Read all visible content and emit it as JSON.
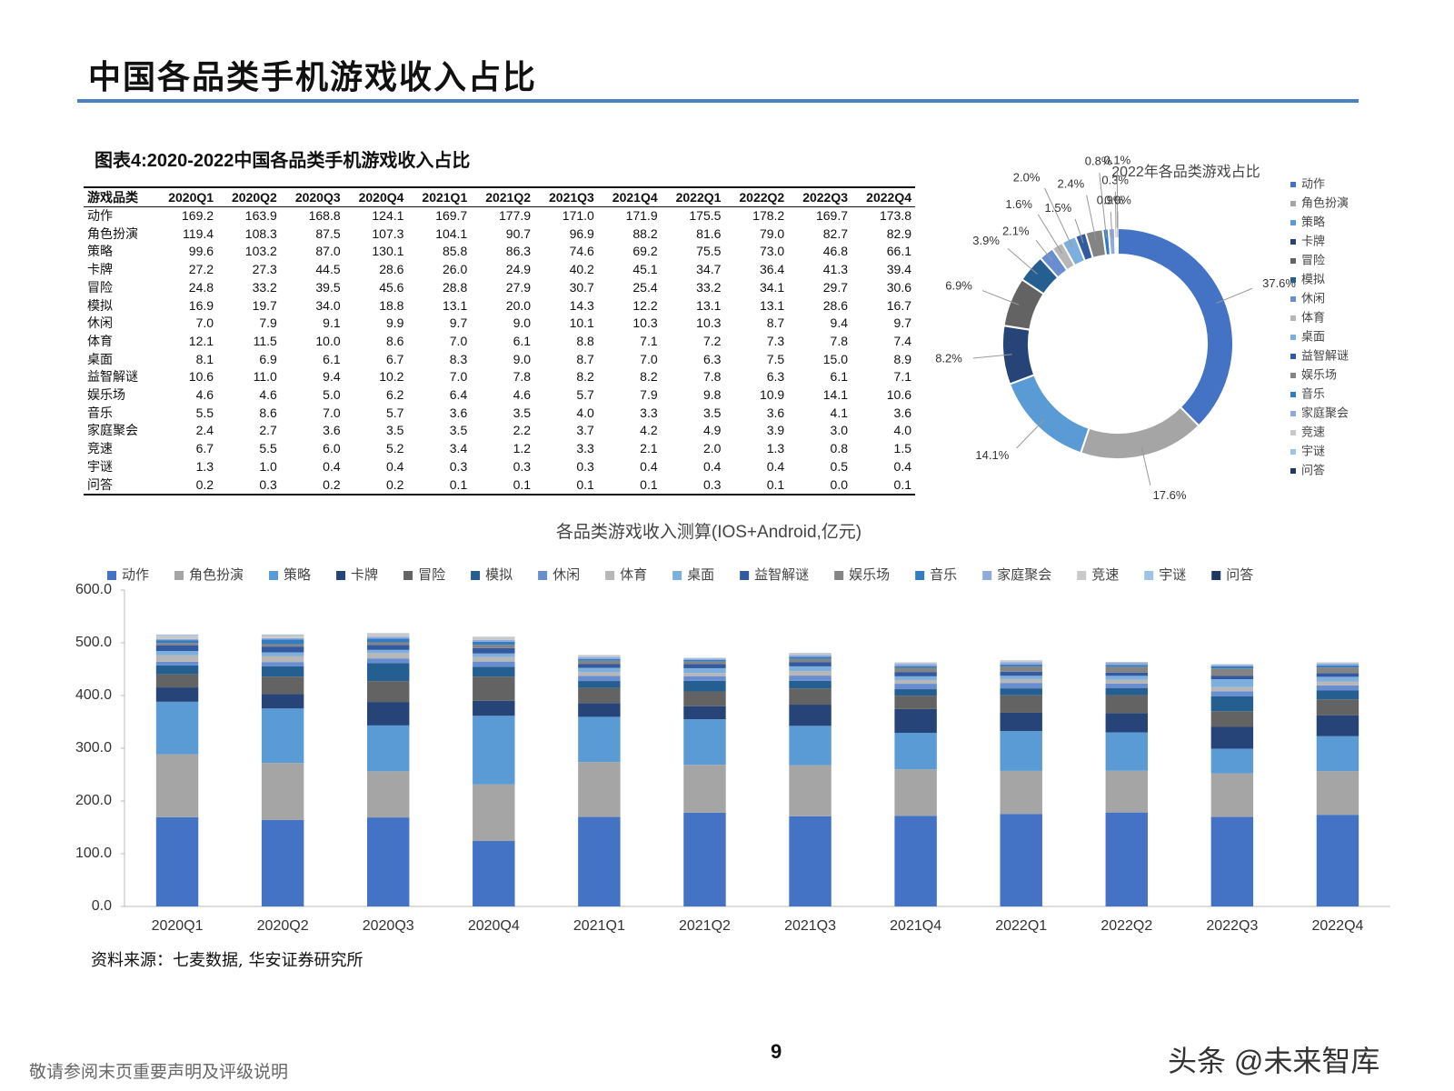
{
  "header": {
    "title": "中国各品类手机游戏收入占比"
  },
  "figure": {
    "caption": "图表4:2020-2022中国各品类手机游戏收入占比"
  },
  "table": {
    "headers": [
      "游戏品类",
      "2020Q1",
      "2020Q2",
      "2020Q3",
      "2020Q4",
      "2021Q1",
      "2021Q2",
      "2021Q3",
      "2021Q4",
      "2022Q1",
      "2022Q2",
      "2022Q3",
      "2022Q4"
    ],
    "rows": [
      [
        "动作",
        "169.2",
        "163.9",
        "168.8",
        "124.1",
        "169.7",
        "177.9",
        "171.0",
        "171.9",
        "175.5",
        "178.2",
        "169.7",
        "173.8"
      ],
      [
        "角色扮演",
        "119.4",
        "108.3",
        "87.5",
        "107.3",
        "104.1",
        "90.7",
        "96.9",
        "88.2",
        "81.6",
        "79.0",
        "82.7",
        "82.9"
      ],
      [
        "策略",
        "99.6",
        "103.2",
        "87.0",
        "130.1",
        "85.8",
        "86.3",
        "74.6",
        "69.2",
        "75.5",
        "73.0",
        "46.8",
        "66.1"
      ],
      [
        "卡牌",
        "27.2",
        "27.3",
        "44.5",
        "28.6",
        "26.0",
        "24.9",
        "40.2",
        "45.1",
        "34.7",
        "36.4",
        "41.3",
        "39.4"
      ],
      [
        "冒险",
        "24.8",
        "33.2",
        "39.5",
        "45.6",
        "28.8",
        "27.9",
        "30.7",
        "25.4",
        "33.2",
        "34.1",
        "29.7",
        "30.6"
      ],
      [
        "模拟",
        "16.9",
        "19.7",
        "34.0",
        "18.8",
        "13.1",
        "20.0",
        "14.3",
        "12.2",
        "13.1",
        "13.1",
        "28.6",
        "16.7"
      ],
      [
        "休闲",
        "7.0",
        "7.9",
        "9.1",
        "9.9",
        "9.7",
        "9.0",
        "10.1",
        "10.3",
        "10.3",
        "8.7",
        "9.4",
        "9.7"
      ],
      [
        "体育",
        "12.1",
        "11.5",
        "10.0",
        "8.6",
        "7.0",
        "6.1",
        "8.8",
        "7.1",
        "7.2",
        "7.3",
        "7.8",
        "7.4"
      ],
      [
        "桌面",
        "8.1",
        "6.9",
        "6.1",
        "6.7",
        "8.3",
        "9.0",
        "8.7",
        "7.0",
        "6.3",
        "7.5",
        "15.0",
        "8.9"
      ],
      [
        "益智解谜",
        "10.6",
        "11.0",
        "9.4",
        "10.2",
        "7.0",
        "7.8",
        "8.2",
        "8.2",
        "7.8",
        "6.3",
        "6.1",
        "7.1"
      ],
      [
        "娱乐场",
        "4.6",
        "4.6",
        "5.0",
        "6.2",
        "6.4",
        "4.6",
        "5.7",
        "7.9",
        "9.8",
        "10.9",
        "14.1",
        "10.6"
      ],
      [
        "音乐",
        "5.5",
        "8.6",
        "7.0",
        "5.7",
        "3.6",
        "3.5",
        "4.0",
        "3.3",
        "3.5",
        "3.6",
        "4.1",
        "3.6"
      ],
      [
        "家庭聚会",
        "2.4",
        "2.7",
        "3.6",
        "3.5",
        "3.5",
        "2.2",
        "3.7",
        "4.2",
        "4.9",
        "3.9",
        "3.0",
        "4.0"
      ],
      [
        "竞速",
        "6.7",
        "5.5",
        "6.0",
        "5.2",
        "3.4",
        "1.2",
        "3.3",
        "2.1",
        "2.0",
        "1.3",
        "0.8",
        "1.5"
      ],
      [
        "宇谜",
        "1.3",
        "1.0",
        "0.4",
        "0.4",
        "0.3",
        "0.3",
        "0.3",
        "0.4",
        "0.4",
        "0.4",
        "0.5",
        "0.4"
      ],
      [
        "问答",
        "0.2",
        "0.3",
        "0.2",
        "0.2",
        "0.1",
        "0.1",
        "0.1",
        "0.1",
        "0.3",
        "0.1",
        "0.0",
        "0.1"
      ]
    ]
  },
  "chart_data": [
    {
      "type": "pie",
      "title": "2022年各品类游戏占比",
      "donut": true,
      "categories": [
        "动作",
        "角色扮演",
        "策略",
        "卡牌",
        "冒险",
        "模拟",
        "休闲",
        "体育",
        "桌面",
        "益智解谜",
        "娱乐场",
        "音乐",
        "家庭聚会",
        "竞速",
        "宇谜",
        "问答"
      ],
      "values": [
        37.6,
        17.6,
        14.1,
        8.2,
        6.9,
        3.9,
        2.1,
        1.6,
        2.0,
        1.5,
        2.4,
        0.8,
        0.9,
        0.3,
        0.1,
        0.0
      ],
      "value_labels": [
        "37.6%",
        "17.6%",
        "14.1%",
        "8.2%",
        "6.9%",
        "3.9%",
        "2.1%",
        "1.6%",
        "2.0%",
        "1.5%",
        "2.4%",
        "0.8%",
        "0.9%",
        "0.3%",
        "0.1%",
        "0.0%"
      ],
      "colors": [
        "#4472c4",
        "#a5a5a5",
        "#5b9bd5",
        "#264478",
        "#636363",
        "#255e91",
        "#698ed0",
        "#b7b7b7",
        "#7cafdd",
        "#335aa1",
        "#848484",
        "#327dc2",
        "#8faadc",
        "#c9c9c9",
        "#9dc3e6",
        "#203864"
      ],
      "legend": "right"
    },
    {
      "type": "bar",
      "stacked": true,
      "title": "各品类游戏收入测算(IOS+Android,亿元)",
      "categories": [
        "2020Q1",
        "2020Q2",
        "2020Q3",
        "2020Q4",
        "2021Q1",
        "2021Q2",
        "2021Q3",
        "2021Q4",
        "2022Q1",
        "2022Q2",
        "2022Q3",
        "2022Q4"
      ],
      "series": [
        {
          "name": "动作",
          "color": "#4472c4",
          "values": [
            169.2,
            163.9,
            168.8,
            124.1,
            169.7,
            177.9,
            171.0,
            171.9,
            175.5,
            178.2,
            169.7,
            173.8
          ]
        },
        {
          "name": "角色扮演",
          "color": "#a5a5a5",
          "values": [
            119.4,
            108.3,
            87.5,
            107.3,
            104.1,
            90.7,
            96.9,
            88.2,
            81.6,
            79.0,
            82.7,
            82.9
          ]
        },
        {
          "name": "策略",
          "color": "#5b9bd5",
          "values": [
            99.6,
            103.2,
            87.0,
            130.1,
            85.8,
            86.3,
            74.6,
            69.2,
            75.5,
            73.0,
            46.8,
            66.1
          ]
        },
        {
          "name": "卡牌",
          "color": "#264478",
          "values": [
            27.2,
            27.3,
            44.5,
            28.6,
            26.0,
            24.9,
            40.2,
            45.1,
            34.7,
            36.4,
            41.3,
            39.4
          ]
        },
        {
          "name": "冒险",
          "color": "#636363",
          "values": [
            24.8,
            33.2,
            39.5,
            45.6,
            28.8,
            27.9,
            30.7,
            25.4,
            33.2,
            34.1,
            29.7,
            30.6
          ]
        },
        {
          "name": "模拟",
          "color": "#255e91",
          "values": [
            16.9,
            19.7,
            34.0,
            18.8,
            13.1,
            20.0,
            14.3,
            12.2,
            13.1,
            13.1,
            28.6,
            16.7
          ]
        },
        {
          "name": "休闲",
          "color": "#698ed0",
          "values": [
            7.0,
            7.9,
            9.1,
            9.9,
            9.7,
            9.0,
            10.1,
            10.3,
            10.3,
            8.7,
            9.4,
            9.7
          ]
        },
        {
          "name": "体育",
          "color": "#b7b7b7",
          "values": [
            12.1,
            11.5,
            10.0,
            8.6,
            7.0,
            6.1,
            8.8,
            7.1,
            7.2,
            7.3,
            7.8,
            7.4
          ]
        },
        {
          "name": "桌面",
          "color": "#7cafdd",
          "values": [
            8.1,
            6.9,
            6.1,
            6.7,
            8.3,
            9.0,
            8.7,
            7.0,
            6.3,
            7.5,
            15.0,
            8.9
          ]
        },
        {
          "name": "益智解谜",
          "color": "#335aa1",
          "values": [
            10.6,
            11.0,
            9.4,
            10.2,
            7.0,
            7.8,
            8.2,
            8.2,
            7.8,
            6.3,
            6.1,
            7.1
          ]
        },
        {
          "name": "娱乐场",
          "color": "#848484",
          "values": [
            4.6,
            4.6,
            5.0,
            6.2,
            6.4,
            4.6,
            5.7,
            7.9,
            9.8,
            10.9,
            14.1,
            10.6
          ]
        },
        {
          "name": "音乐",
          "color": "#327dc2",
          "values": [
            5.5,
            8.6,
            7.0,
            5.7,
            3.6,
            3.5,
            4.0,
            3.3,
            3.5,
            3.6,
            4.1,
            3.6
          ]
        },
        {
          "name": "家庭聚会",
          "color": "#8faadc",
          "values": [
            2.4,
            2.7,
            3.6,
            3.5,
            3.5,
            2.2,
            3.7,
            4.2,
            4.9,
            3.9,
            3.0,
            4.0
          ]
        },
        {
          "name": "竞速",
          "color": "#c9c9c9",
          "values": [
            6.7,
            5.5,
            6.0,
            5.2,
            3.4,
            1.2,
            3.3,
            2.1,
            2.0,
            1.3,
            0.8,
            1.5
          ]
        },
        {
          "name": "宇谜",
          "color": "#9dc3e6",
          "values": [
            1.3,
            1.0,
            0.4,
            0.4,
            0.3,
            0.3,
            0.3,
            0.4,
            0.4,
            0.4,
            0.5,
            0.4
          ]
        },
        {
          "name": "问答",
          "color": "#203864",
          "values": [
            0.2,
            0.3,
            0.2,
            0.2,
            0.1,
            0.1,
            0.1,
            0.1,
            0.3,
            0.1,
            0.0,
            0.1
          ]
        }
      ],
      "ylim": [
        0,
        600
      ],
      "yticks": [
        {
          "value": 0,
          "label": "0.0"
        },
        {
          "value": 100,
          "label": "100.0"
        },
        {
          "value": 200,
          "label": "200.0"
        },
        {
          "value": 300,
          "label": "300.0"
        },
        {
          "value": 400,
          "label": "400.0"
        },
        {
          "value": 500,
          "label": "500.0"
        },
        {
          "value": 600,
          "label": "600.0"
        }
      ],
      "legend": "top"
    }
  ],
  "source": "资料来源：七麦数据, 华安证券研究所",
  "page_number": "9",
  "footer": {
    "disclaimer": "敬请参阅末页重要声明及评级说明",
    "watermark": "头条 @未来智库"
  }
}
